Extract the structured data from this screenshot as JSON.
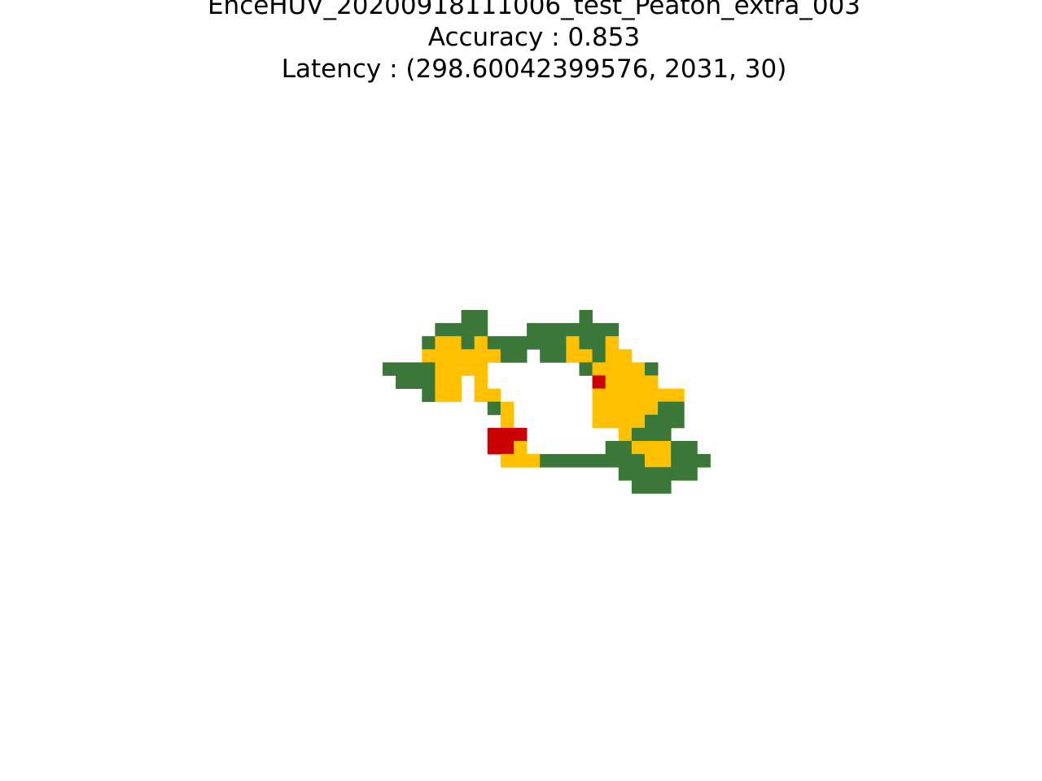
{
  "title": {
    "line1": "EnceHUV_20200918111006_test_Peaton_extra_003",
    "line2": "Accuracy : 0.853",
    "line3": "Latency : (298.60042399576, 2031, 30)"
  },
  "colors": {
    "correct": "#3b7739",
    "partial": "#ffc000",
    "wrong": "#cc0000",
    "background": "#ffffff"
  },
  "chart_data": {
    "type": "heatmap",
    "title": "EnceHUV_20200918111006_test_Peaton_extra_003\nAccuracy : 0.853\nLatency : (298.60042399576, 2031, 30)",
    "axes": "off",
    "legend": "none",
    "cell_legend": {
      "G": "correct",
      "Y": "partial",
      "R": "wrong",
      ".": "empty"
    },
    "row_start": 0,
    "col_start": 0,
    "rows": [
      "......GG.......G.......",
      "....GGGG...GGGGGGG.....",
      "...GYYGYGGGGGGYGGY.....",
      "...YYYYYYGG.GGYYGYY....",
      "GGGGYYYY.......GYYYYG..",
      ".GGGYY.Y........RYYYY..",
      "...GYY.YY.......YYYYYYY",
      "........GY......YYYYYGG",
      ".........Y......YYYYGGG",
      "........RRR.......YGGG.",
      "........RRY......GGYYYGG",
      ".........YYYGGGGGGGGYYGGG",
      "..................GGGGGG",
      "...................GGG.."
    ]
  }
}
